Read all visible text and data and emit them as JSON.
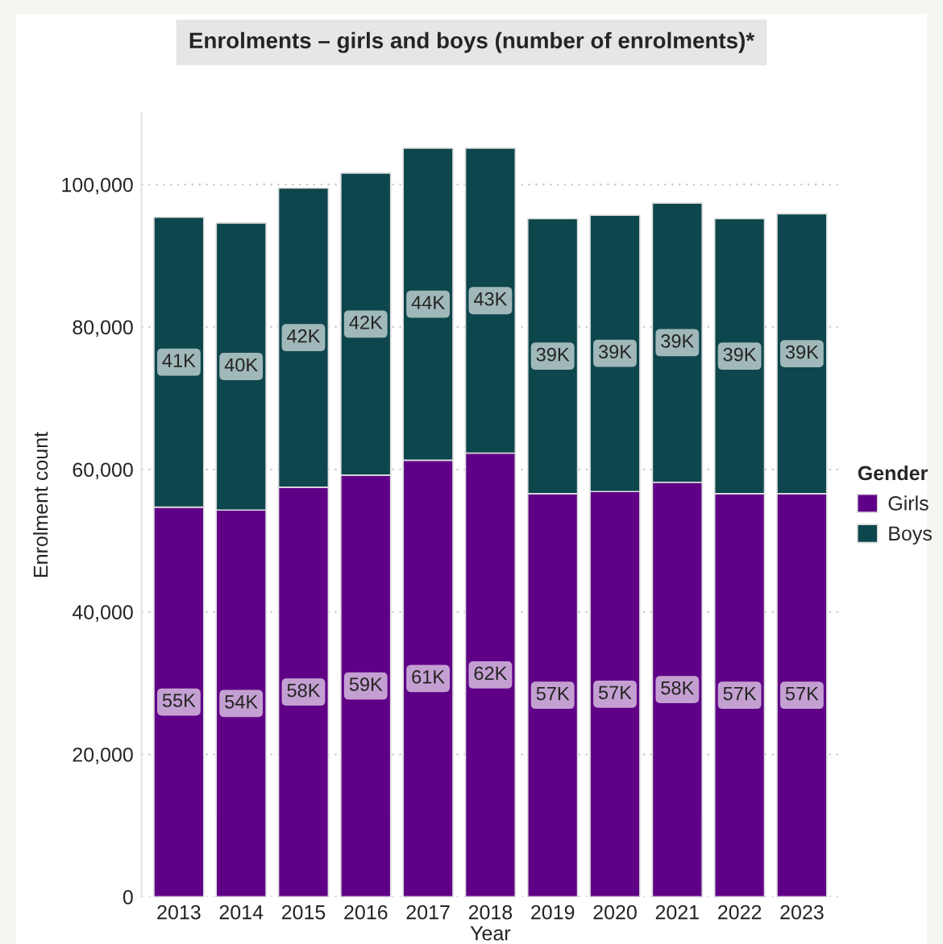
{
  "chart_data": {
    "type": "bar",
    "title": "Enrolments – girls and boys (number of enrolments)*",
    "xlabel": "Year",
    "ylabel": "Enrolment count",
    "legend_title": "Gender",
    "categories": [
      "2013",
      "2014",
      "2015",
      "2016",
      "2017",
      "2018",
      "2019",
      "2020",
      "2021",
      "2022",
      "2023"
    ],
    "stacked": true,
    "series": [
      {
        "name": "Girls",
        "color": "#5f0086",
        "values": [
          54700,
          54300,
          57500,
          59200,
          61300,
          62300,
          56600,
          56900,
          58200,
          56600,
          56600
        ],
        "value_labels": [
          "55K",
          "54K",
          "58K",
          "59K",
          "61K",
          "62K",
          "57K",
          "57K",
          "58K",
          "57K",
          "57K"
        ]
      },
      {
        "name": "Boys",
        "color": "#0d464d",
        "values": [
          40700,
          40300,
          42000,
          42400,
          43800,
          42800,
          38600,
          38800,
          39200,
          38600,
          39300
        ],
        "value_labels": [
          "41K",
          "40K",
          "42K",
          "42K",
          "44K",
          "43K",
          "39K",
          "39K",
          "39K",
          "39K",
          "39K"
        ]
      }
    ],
    "ylim": [
      0,
      110000
    ],
    "yticks": [
      {
        "value": 0,
        "label": "0"
      },
      {
        "value": 20000,
        "label": "20,000"
      },
      {
        "value": 40000,
        "label": "40,000"
      },
      {
        "value": 60000,
        "label": "60,000"
      },
      {
        "value": 80000,
        "label": "80,000"
      },
      {
        "value": 100000,
        "label": "100,000"
      }
    ],
    "grid": "y",
    "legend": "right"
  }
}
